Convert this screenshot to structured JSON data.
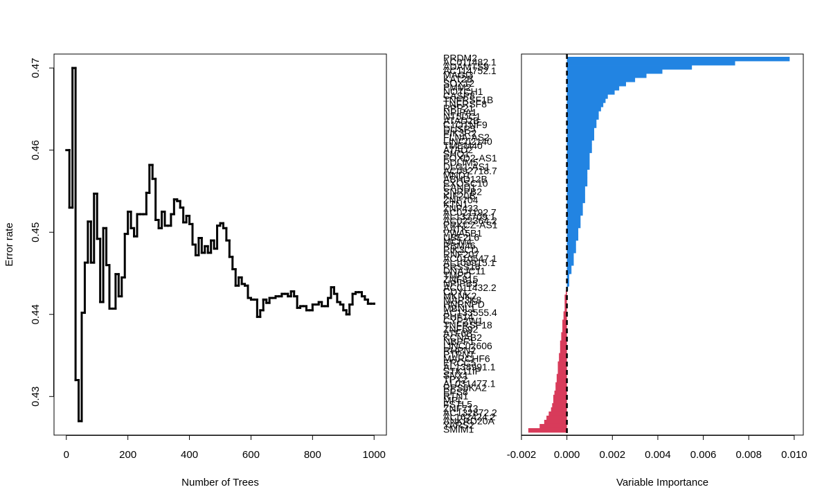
{
  "chart_data": [
    {
      "type": "line",
      "step": true,
      "xlabel": "Number of Trees",
      "ylabel": "Error rate",
      "color": "#000000",
      "x": [
        0,
        10,
        20,
        30,
        40,
        50,
        60,
        70,
        80,
        90,
        100,
        110,
        120,
        130,
        140,
        150,
        160,
        170,
        180,
        190,
        200,
        210,
        220,
        230,
        240,
        250,
        260,
        270,
        280,
        290,
        300,
        310,
        320,
        330,
        340,
        350,
        360,
        370,
        380,
        390,
        400,
        410,
        420,
        430,
        440,
        450,
        460,
        470,
        480,
        490,
        500,
        510,
        520,
        530,
        540,
        550,
        560,
        570,
        580,
        590,
        600,
        610,
        620,
        630,
        640,
        650,
        660,
        670,
        680,
        690,
        700,
        710,
        720,
        730,
        740,
        750,
        760,
        770,
        780,
        790,
        800,
        810,
        820,
        830,
        840,
        850,
        860,
        870,
        880,
        890,
        900,
        910,
        920,
        930,
        940,
        950,
        960,
        970,
        980,
        990,
        1000
      ],
      "values": [
        0.46,
        0.453,
        0.47,
        0.432,
        0.427,
        0.4402,
        0.4463,
        0.4513,
        0.4463,
        0.4547,
        0.4492,
        0.4415,
        0.4505,
        0.446,
        0.4407,
        0.4407,
        0.4449,
        0.4422,
        0.4445,
        0.4498,
        0.4525,
        0.4505,
        0.4495,
        0.4522,
        0.4522,
        0.4522,
        0.4548,
        0.4582,
        0.4565,
        0.4515,
        0.4505,
        0.4525,
        0.4508,
        0.4508,
        0.4522,
        0.454,
        0.4538,
        0.453,
        0.4512,
        0.452,
        0.451,
        0.4485,
        0.4472,
        0.4493,
        0.4475,
        0.4483,
        0.4475,
        0.449,
        0.448,
        0.4508,
        0.4511,
        0.4505,
        0.449,
        0.447,
        0.4455,
        0.4435,
        0.4445,
        0.4437,
        0.4435,
        0.442,
        0.4418,
        0.4418,
        0.4397,
        0.4405,
        0.4418,
        0.4414,
        0.442,
        0.442,
        0.4422,
        0.4422,
        0.4425,
        0.4425,
        0.4422,
        0.4428,
        0.4422,
        0.4408,
        0.441,
        0.441,
        0.4405,
        0.4405,
        0.4412,
        0.4412,
        0.4415,
        0.441,
        0.441,
        0.442,
        0.4433,
        0.4425,
        0.4415,
        0.4412,
        0.4405,
        0.44,
        0.4412,
        0.4425,
        0.4427,
        0.4427,
        0.4422,
        0.4418,
        0.4413,
        0.4413,
        0.4413
      ],
      "xlim": [
        -40,
        1040
      ],
      "ylim": [
        0.4253,
        0.4717
      ],
      "xticks": [
        0,
        200,
        400,
        600,
        800,
        1000
      ],
      "yticks": [
        0.43,
        0.44,
        0.45,
        0.46,
        0.47
      ]
    },
    {
      "type": "barh",
      "xlabel": "Variable Importance",
      "positive_color": "#2284e2",
      "negative_color": "#d83b5a",
      "vline": 0,
      "categories": [
        "PRDM2",
        "AC011482.1",
        "ADAMTS9",
        "AC114752.1",
        "MAGI3",
        "KAT2B",
        "SOX12",
        "PMM2",
        "NOTCH1",
        "CASP8",
        "TNFRSF1B",
        "TNFRSF8",
        "RPP21",
        "NPIPA1",
        "NT5DC1",
        "ATAD2B",
        "C1QTNF9",
        "DUSP5",
        "PIK3R2",
        "FLNA-AS2",
        "LINC02140",
        "TMEM40",
        "ATAD2",
        "SHQ1",
        "FOXD2-AS1",
        "PDLIM5",
        "DLG1-AS1",
        "AC092718.7",
        "MND1",
        "ABHD12B",
        "EXOSC10",
        "CAND1",
        "SNRPB2",
        "KIF20B",
        "ZNF704",
        "KTN1",
        "ZNF433",
        "AC021192.7",
        "AL132709.1",
        "AC022364.2",
        "PRKCZ-AS1",
        "AATK",
        "VWA5B1",
        "UBE2L6",
        "MCM4",
        "RBM46",
        "PIK3CD",
        "RNF207",
        "AC010547.1",
        "AL109915.1",
        "PRSS16",
        "DNAJC11",
        "TMPO",
        "ZNF815",
        "NPIPB5",
        "AC011432.2",
        "CDYL",
        "MKNK2",
        "MAP3K8",
        "HNRNPD",
        "MBNL1",
        "AC133555.4",
        "PHF14",
        "CYP2W1",
        "TNFRSF18",
        "ZNF692",
        "ATF6B",
        "KCNAB2",
        "NBPF1",
        "LINC02606",
        "RHPN2",
        "PTPN7",
        "MARCHF6",
        "ERCC5",
        "AL138991.1",
        "STK11IP",
        "SNX1",
        "TPX2",
        "AL031477.1",
        "RPS6KA2",
        "EPS8",
        "RTN1",
        "MPL",
        "FSTL5",
        "ZNF713",
        "AC132872.2",
        "AL162424.2",
        "ANKRD20A",
        "YARS2",
        "SMIM1"
      ],
      "values": [
        0.0098,
        0.0074,
        0.0055,
        0.0042,
        0.0035,
        0.003,
        0.0026,
        0.0023,
        0.0021,
        0.0018,
        0.0017,
        0.0016,
        0.0015,
        0.0014,
        0.0014,
        0.0013,
        0.0013,
        0.0012,
        0.0012,
        0.0012,
        0.0011,
        0.0011,
        0.0011,
        0.001,
        0.001,
        0.001,
        0.001,
        0.0009,
        0.0009,
        0.0009,
        0.0009,
        0.0008,
        0.0008,
        0.0008,
        0.0008,
        0.0007,
        0.0007,
        0.0007,
        0.0006,
        0.0006,
        0.0006,
        0.0005,
        0.0005,
        0.0005,
        0.0004,
        0.0004,
        0.0004,
        0.0003,
        0.0003,
        0.0003,
        0.0002,
        0.0002,
        0.0001,
        0.0001,
        0.0001,
        5e-05,
        -5e-05,
        -0.0001,
        -0.0001,
        -0.0001,
        -0.0001,
        -0.00015,
        -0.00015,
        -0.0002,
        -0.0002,
        -0.0002,
        -0.00025,
        -0.00025,
        -0.0003,
        -0.0003,
        -0.0003,
        -0.00035,
        -0.00035,
        -0.0004,
        -0.0004,
        -0.0004,
        -0.00045,
        -0.00045,
        -0.0005,
        -0.0005,
        -0.00055,
        -0.0006,
        -0.0006,
        -0.00065,
        -0.0007,
        -0.0008,
        -0.0009,
        -0.001,
        -0.0012,
        -0.0017
      ],
      "xlim": [
        -0.002,
        0.0104
      ],
      "xticks": [
        -0.002,
        {
          "value": 0,
          "label": "0.000"
        },
        0.002,
        0.004,
        0.006,
        0.008,
        {
          "value": 0.01,
          "label": "0.010"
        }
      ]
    }
  ]
}
